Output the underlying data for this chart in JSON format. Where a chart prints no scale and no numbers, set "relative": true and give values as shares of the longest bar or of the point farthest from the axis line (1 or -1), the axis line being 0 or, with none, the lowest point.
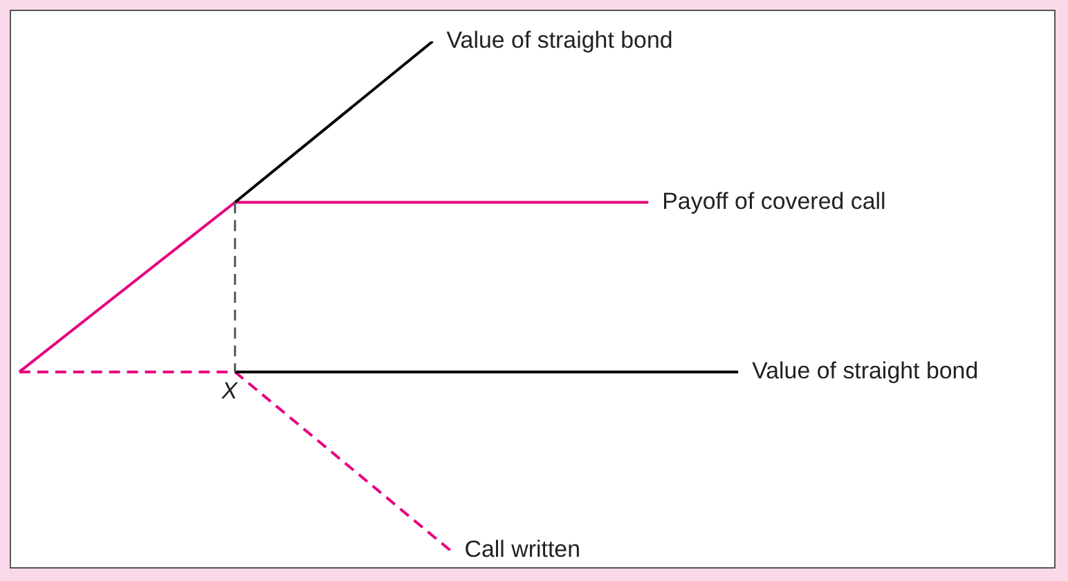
{
  "chart_data": {
    "type": "line",
    "relative": true,
    "annotations": [
      "X"
    ],
    "categories": [
      null,
      null,
      null,
      null,
      null,
      null,
      null,
      null,
      null,
      null,
      null,
      null,
      null,
      null,
      null,
      null,
      null,
      null,
      null,
      null,
      null,
      null,
      null,
      null,
      null,
      null,
      null,
      null,
      null,
      null,
      null,
      null,
      null,
      null,
      null,
      null,
      null,
      null,
      null,
      null,
      null
    ],
    "series": [
      {
        "name": "Value of straight bond",
        "color": "#000000",
        "line_style": "solid",
        "values": [
          null,
          null,
          null,
          null,
          null,
          null,
          null,
          null,
          null,
          null,
          null,
          null,
          0.684,
          null,
          null,
          null,
          null,
          null,
          null,
          null,
          null,
          null,
          null,
          1,
          null,
          null,
          null,
          null,
          null,
          null,
          null,
          null,
          null,
          null,
          null,
          null,
          null,
          null,
          null,
          null,
          null
        ]
      },
      {
        "name": "Payoff of covered call",
        "color": "#e6007e",
        "line_style": "solid",
        "values": [
          0.351,
          null,
          null,
          null,
          null,
          null,
          null,
          null,
          null,
          null,
          null,
          null,
          0.684,
          null,
          null,
          null,
          null,
          null,
          null,
          null,
          null,
          null,
          null,
          null,
          null,
          null,
          null,
          null,
          null,
          null,
          null,
          null,
          null,
          null,
          null,
          0.684,
          null,
          null,
          null,
          null,
          null
        ]
      },
      {
        "name": "Value of straight bond",
        "color": "#000000",
        "line_style": "solid",
        "values": [
          null,
          null,
          null,
          null,
          null,
          null,
          null,
          null,
          null,
          null,
          null,
          null,
          0.351,
          null,
          null,
          null,
          null,
          null,
          null,
          null,
          null,
          null,
          null,
          null,
          null,
          null,
          null,
          null,
          null,
          null,
          null,
          null,
          null,
          null,
          null,
          null,
          null,
          null,
          null,
          null,
          0.351
        ]
      },
      {
        "name": "Call written",
        "color": "#e6007e",
        "line_style": "dashed",
        "values": [
          0.351,
          null,
          null,
          null,
          null,
          null,
          null,
          null,
          null,
          null,
          null,
          null,
          0.351,
          null,
          null,
          null,
          null,
          null,
          null,
          null,
          null,
          null,
          null,
          null,
          0,
          null,
          null,
          null,
          null,
          null,
          null,
          null,
          null,
          null,
          null,
          null,
          null,
          null,
          null,
          null,
          null
        ]
      }
    ]
  }
}
